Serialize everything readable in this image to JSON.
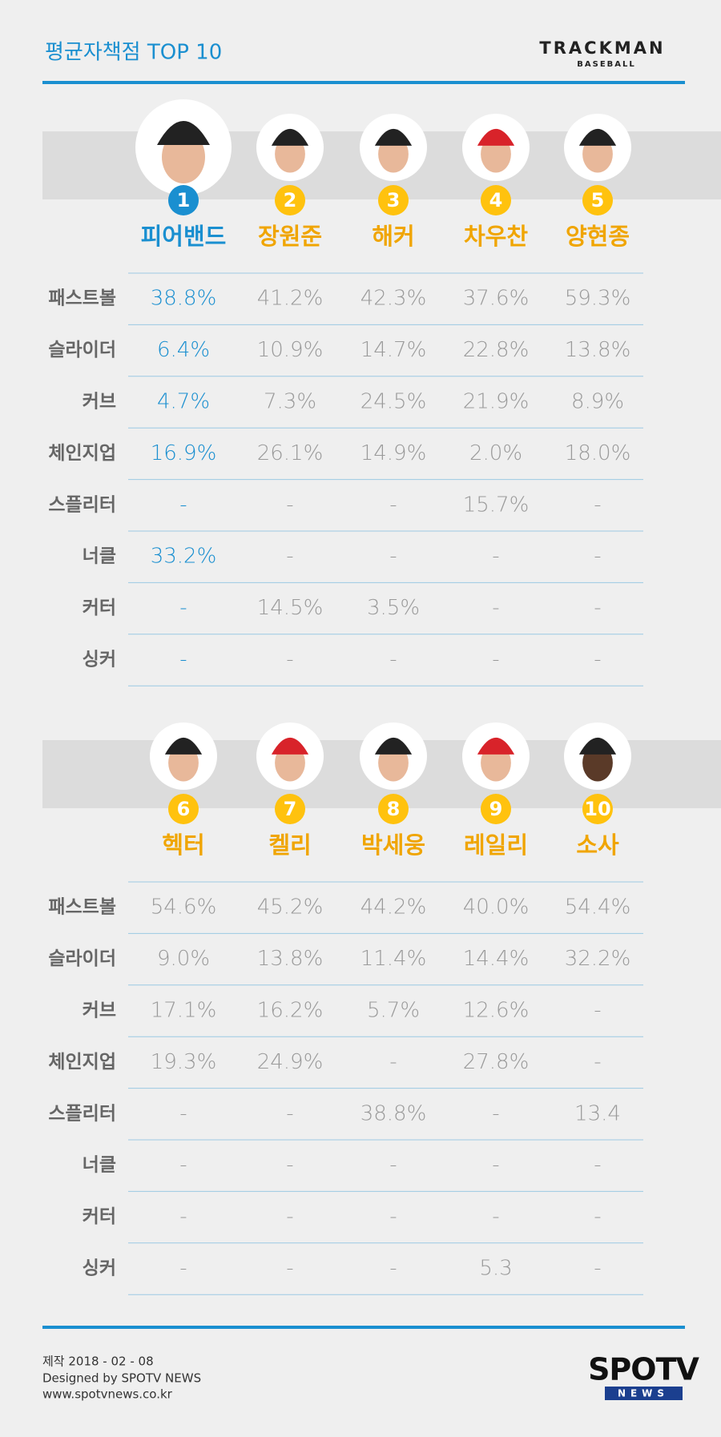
{
  "header": {
    "title": "평균자책점 TOP 10",
    "logo": "TRACKMAN",
    "logo_sub": "BASEBALL"
  },
  "groups": [
    {
      "players": [
        {
          "rank": "1",
          "name": "피어밴드"
        },
        {
          "rank": "2",
          "name": "장원준"
        },
        {
          "rank": "3",
          "name": "해커"
        },
        {
          "rank": "4",
          "name": "차우찬"
        },
        {
          "rank": "5",
          "name": "양현종"
        }
      ],
      "rows": [
        {
          "label": "패스트볼",
          "values": [
            "38.8%",
            "41.2%",
            "42.3%",
            "37.6%",
            "59.3%"
          ]
        },
        {
          "label": "슬라이더",
          "values": [
            "6.4%",
            "10.9%",
            "14.7%",
            "22.8%",
            "13.8%"
          ]
        },
        {
          "label": "커브",
          "values": [
            "4.7%",
            "7.3%",
            "24.5%",
            "21.9%",
            "8.9%"
          ]
        },
        {
          "label": "체인지업",
          "values": [
            "16.9%",
            "26.1%",
            "14.9%",
            "2.0%",
            "18.0%"
          ]
        },
        {
          "label": "스플리터",
          "values": [
            "-",
            "-",
            "-",
            "15.7%",
            "-"
          ]
        },
        {
          "label": "너클",
          "values": [
            "33.2%",
            "-",
            "-",
            "-",
            "-"
          ]
        },
        {
          "label": "커터",
          "values": [
            "-",
            "14.5%",
            "3.5%",
            "-",
            "-"
          ]
        },
        {
          "label": "싱커",
          "values": [
            "-",
            "-",
            "-",
            "-",
            "-"
          ]
        }
      ]
    },
    {
      "players": [
        {
          "rank": "6",
          "name": "헥터"
        },
        {
          "rank": "7",
          "name": "켈리"
        },
        {
          "rank": "8",
          "name": "박세웅"
        },
        {
          "rank": "9",
          "name": "레일리"
        },
        {
          "rank": "10",
          "name": "소사"
        }
      ],
      "rows": [
        {
          "label": "패스트볼",
          "values": [
            "54.6%",
            "45.2%",
            "44.2%",
            "40.0%",
            "54.4%"
          ]
        },
        {
          "label": "슬라이더",
          "values": [
            "9.0%",
            "13.8%",
            "11.4%",
            "14.4%",
            "32.2%"
          ]
        },
        {
          "label": "커브",
          "values": [
            "17.1%",
            "16.2%",
            "5.7%",
            "12.6%",
            "-"
          ]
        },
        {
          "label": "체인지업",
          "values": [
            "19.3%",
            "24.9%",
            "-",
            "27.8%",
            "-"
          ]
        },
        {
          "label": "스플리터",
          "values": [
            "-",
            "-",
            "38.8%",
            "-",
            "13.4"
          ]
        },
        {
          "label": "너클",
          "values": [
            "-",
            "-",
            "-",
            "-",
            "-"
          ]
        },
        {
          "label": "커터",
          "values": [
            "-",
            "-",
            "-",
            "-",
            "-"
          ]
        },
        {
          "label": "싱커",
          "values": [
            "-",
            "-",
            "-",
            "5.3",
            "-"
          ]
        }
      ]
    }
  ],
  "footer": {
    "date": "제작 2018 - 02 - 08",
    "credit": "Designed by SPOTV NEWS",
    "url": "www.spotvnews.co.kr",
    "logo": "SPOTV",
    "logo_sub": "NEWS"
  }
}
